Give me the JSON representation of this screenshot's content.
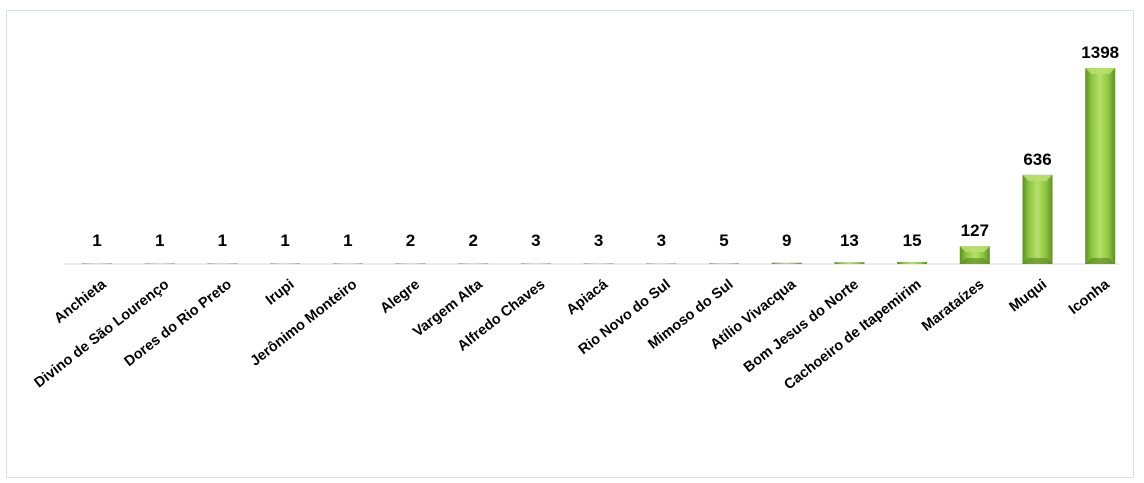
{
  "chart_data": {
    "type": "bar",
    "title": "",
    "xlabel": "",
    "ylabel": "",
    "categories": [
      "Anchieta",
      "Divino de São Lourenço",
      "Dores do Rio Preto",
      "Irupi",
      "Jerônimo Monteiro",
      "Alegre",
      "Vargem Alta",
      "Alfredo Chaves",
      "Apiacá",
      "Rio Novo do Sul",
      "Mimoso do Sul",
      "Atílio Vivacqua",
      "Bom Jesus do Norte",
      "Cachoeiro de Itapemirim",
      "Marataízes",
      "Muqui",
      "Iconha"
    ],
    "values": [
      1,
      1,
      1,
      1,
      1,
      2,
      2,
      3,
      3,
      3,
      5,
      9,
      13,
      15,
      127,
      636,
      1398
    ],
    "ylim": [
      0,
      1398
    ],
    "grid": false,
    "legend": "none",
    "colors": {
      "bar_light": "#b6e06a",
      "bar_mid": "#8cc63f",
      "bar_dark": "#5f8f22",
      "axis": "#d9d9d9"
    }
  }
}
